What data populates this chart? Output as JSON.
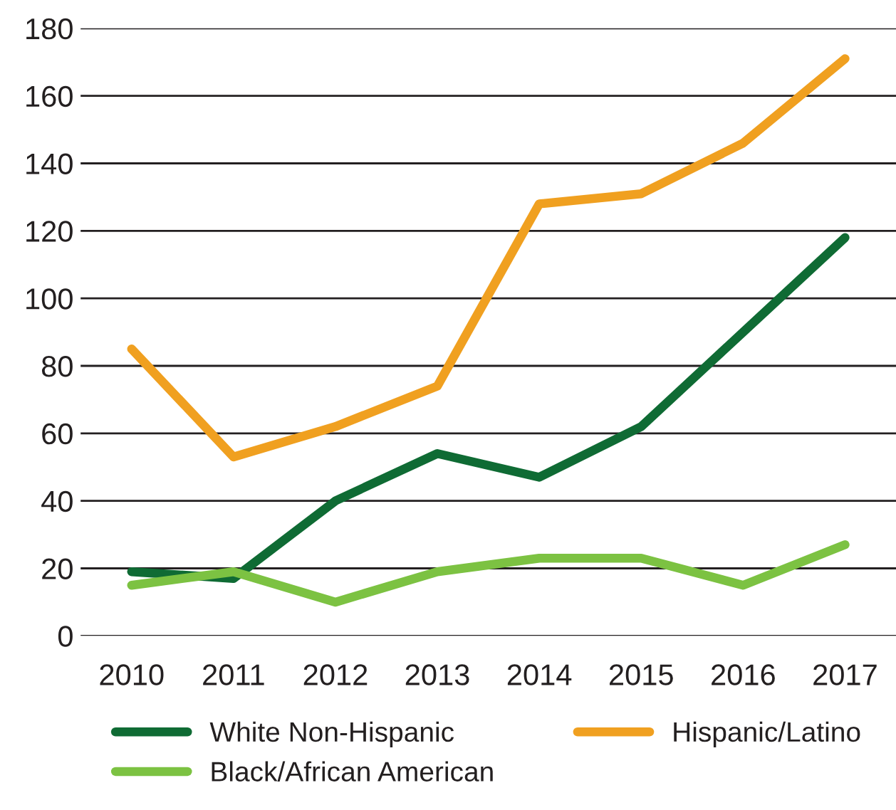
{
  "chart_data": {
    "type": "line",
    "categories": [
      "2010",
      "2011",
      "2012",
      "2013",
      "2014",
      "2015",
      "2016",
      "2017"
    ],
    "series": [
      {
        "name": "White Non-Hispanic",
        "color": "#0f6b34",
        "values": [
          19,
          17,
          40,
          54,
          47,
          62,
          90,
          118
        ]
      },
      {
        "name": "Hispanic/Latino",
        "color": "#f0a020",
        "values": [
          85,
          53,
          62,
          74,
          128,
          131,
          146,
          171
        ]
      },
      {
        "name": "Black/African American",
        "color": "#7cc242",
        "values": [
          15,
          19,
          10,
          19,
          23,
          23,
          15,
          27
        ]
      }
    ],
    "ylim": [
      0,
      180
    ],
    "yticks": [
      0,
      20,
      40,
      60,
      80,
      100,
      120,
      140,
      160,
      180
    ],
    "grid": "y",
    "legend": "bottom",
    "marker": "none",
    "line_style": "solid"
  }
}
